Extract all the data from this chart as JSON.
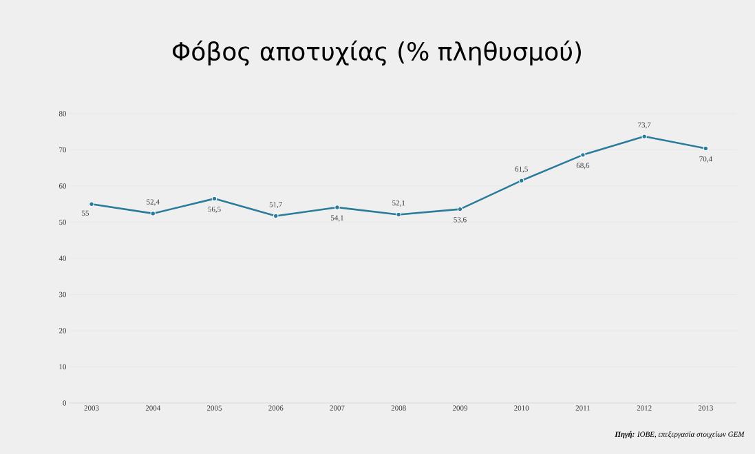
{
  "chart_data": {
    "type": "line",
    "title": "Φόβος αποτυχίας (% πληθυσμού)",
    "categories": [
      "2003",
      "2004",
      "2005",
      "2006",
      "2007",
      "2008",
      "2009",
      "2010",
      "2011",
      "2012",
      "2013"
    ],
    "series": [
      {
        "color": "#2b7b9b",
        "values": [
          55,
          52.4,
          56.5,
          51.7,
          54.1,
          52.1,
          53.6,
          61.5,
          68.6,
          73.7,
          70.4
        ],
        "value_labels": [
          "55",
          "52,4",
          "56,5",
          "51,7",
          "54,1",
          "52,1",
          "53,6",
          "61,5",
          "68,6",
          "73,7",
          "70,4"
        ]
      }
    ],
    "ylim": [
      0,
      80
    ],
    "yticks": [
      0,
      10,
      20,
      30,
      40,
      50,
      60,
      70,
      80
    ],
    "grid": "y",
    "marker": "circle",
    "line_style": "solid",
    "annotations": [
      "**Πηγή:** ΙΟΒΕ, επεξεργασία στοιχείων GEM"
    ]
  }
}
